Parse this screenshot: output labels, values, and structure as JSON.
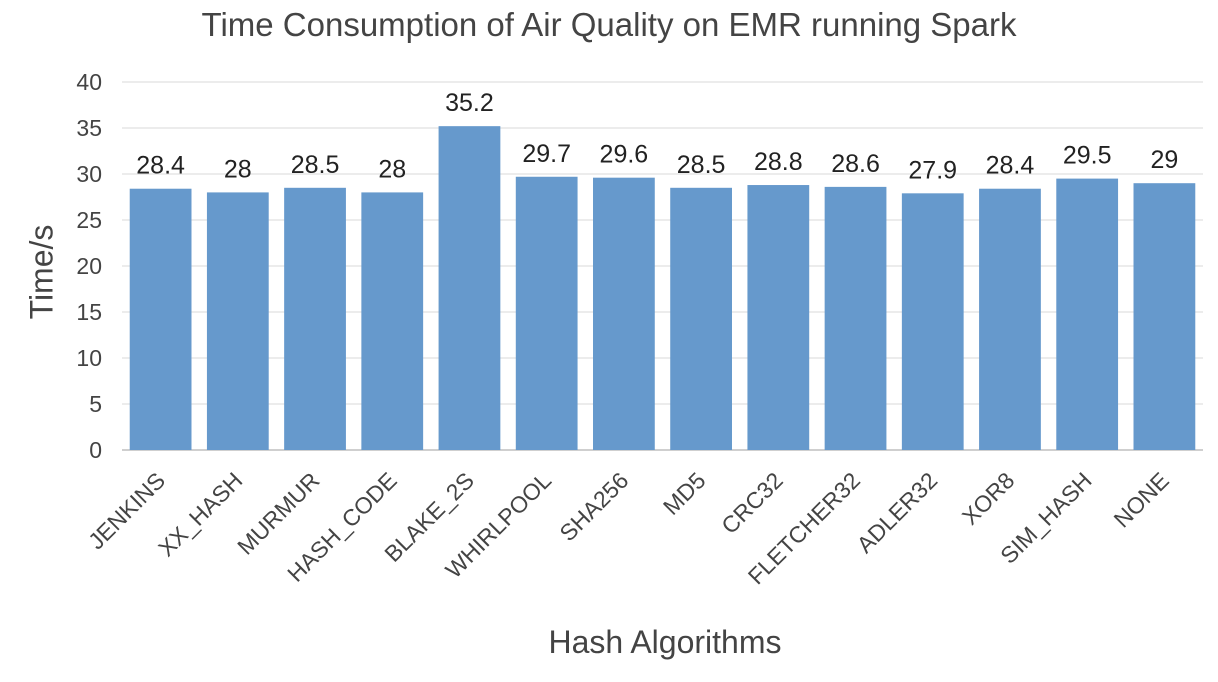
{
  "chart_data": {
    "type": "bar",
    "title": "Time Consumption of Air Quality on EMR running Spark",
    "xlabel": "Hash Algorithms",
    "ylabel": "Time/s",
    "ylim": [
      0,
      40
    ],
    "yticks": [
      0,
      5,
      10,
      15,
      20,
      25,
      30,
      35,
      40
    ],
    "grid": true,
    "bar_color": "#6699CC",
    "categories": [
      "JENKINS",
      "XX_HASH",
      "MURMUR",
      "HASH_CODE",
      "BLAKE_2S",
      "WHIRLPOOL",
      "SHA256",
      "MD5",
      "CRC32",
      "FLETCHER32",
      "ADLER32",
      "XOR8",
      "SIM_HASH",
      "NONE"
    ],
    "values": [
      28.4,
      28,
      28.5,
      28,
      35.2,
      29.7,
      29.6,
      28.5,
      28.8,
      28.6,
      27.9,
      28.4,
      29.5,
      29
    ]
  }
}
